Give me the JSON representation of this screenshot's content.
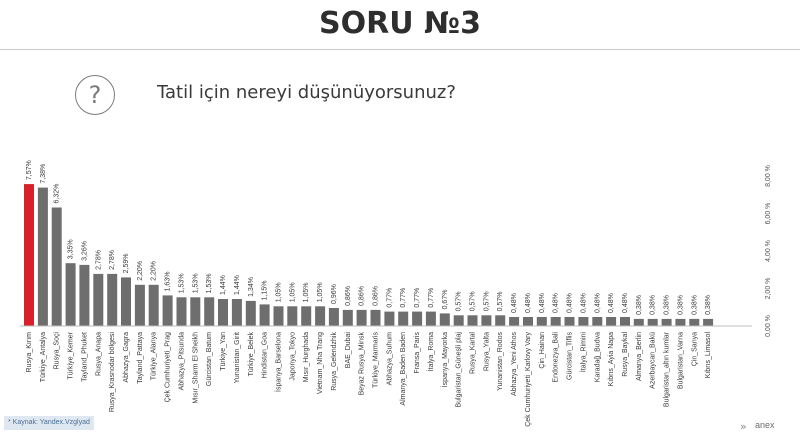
{
  "header": {
    "title": "SORU №3"
  },
  "question": {
    "icon": "question-circle-icon",
    "glyph": "?",
    "text": "Tatil için nereyi düşünüyorsunuz?"
  },
  "footer": {
    "source": "* Kaynak: Yandex.Vzglyad",
    "nav_glyph": "»",
    "brand": "anex"
  },
  "colors": {
    "highlight": "#d7202a",
    "bar": "#6e6e6e",
    "text": "#3a3a3a"
  },
  "chart_data": {
    "type": "bar",
    "categories": [
      "Rusya_Kırım",
      "Türkiye_Antalya",
      "Rusya_Soçi",
      "Türkiye_Kemer",
      "Tayland_Phuket",
      "Rusya_Anapa",
      "Rusya_Krasnodar bölgesi",
      "Abhazya_Gagra",
      "Tayland_Pattaya",
      "Türkiye_Alanya",
      "Çek Cumhuriyeti_Prag",
      "Abhazya_Pitsunda",
      "Mısır_Sharm El Sheikh",
      "Gürcistan_Batum",
      "Türkiye_Yan",
      "Yunanistan_Girit",
      "Türkiye_Belek",
      "Hindistan_Goa",
      "İspanya_Barselona",
      "Japonya_Tokyo",
      "Mısır_Hurghada",
      "Vietnam_Nha Trang",
      "Rusya_Gelendzhik",
      "BAE_Dubai",
      "Beyaz Rusya_Minsk",
      "Türkiye_Marmaris",
      "Abhazya_Suhum",
      "Almanya_Baden Baden",
      "Fransa_Paris",
      "İtalya_Roma",
      "İspanya_Mayorka",
      "Bulgaristan_Güneşli plaj",
      "Rusya_Kartal",
      "Rusya_Yalta",
      "Yunanistan_Rodos",
      "Abhazya_Yeni Athos",
      "Çek Cumhuriyeti_Karlovy Vary",
      "Çin_Hainan",
      "Endonezya_Bali",
      "Gürcistan_Tiflis",
      "İtalya_Rimini",
      "Karadağ_Budva",
      "Kıbrıs_Ayia Napa",
      "Rusya_Baykal",
      "Almanya_Berlin",
      "Azerbaycan_Bakü",
      "Bulgaristan_altın kumlar",
      "Bulgaristan_Varna",
      "Çin_Sanya",
      "Kıbrıs_Limasol"
    ],
    "values": [
      7.57,
      7.38,
      6.32,
      3.35,
      3.26,
      2.78,
      2.78,
      2.59,
      2.2,
      2.2,
      1.63,
      1.53,
      1.53,
      1.53,
      1.44,
      1.44,
      1.34,
      1.15,
      1.05,
      1.05,
      1.05,
      1.05,
      0.96,
      0.86,
      0.86,
      0.86,
      0.77,
      0.77,
      0.77,
      0.77,
      0.67,
      0.57,
      0.57,
      0.57,
      0.57,
      0.48,
      0.48,
      0.48,
      0.48,
      0.48,
      0.48,
      0.48,
      0.48,
      0.48,
      0.38,
      0.38,
      0.38,
      0.38,
      0.38,
      0.38
    ],
    "data_labels": [
      "7,57%",
      "7,38%",
      "6,32%",
      "3,35%",
      "3,26%",
      "2,78%",
      "2,78%",
      "2,59%",
      "2,20%",
      "2,20%",
      "1,63%",
      "1,53%",
      "1,53%",
      "1,53%",
      "1,44%",
      "1,44%",
      "1,34%",
      "1,15%",
      "1,05%",
      "1,05%",
      "1,05%",
      "1,05%",
      "0,96%",
      "0,86%",
      "0,86%",
      "0,86%",
      "0,77%",
      "0,77%",
      "0,77%",
      "0,77%",
      "0,67%",
      "0,57%",
      "0,57%",
      "0,57%",
      "0,57%",
      "0,48%",
      "0,48%",
      "0,48%",
      "0,48%",
      "0,48%",
      "0,48%",
      "0,48%",
      "0,48%",
      "0,48%",
      "0,38%",
      "0,38%",
      "0,38%",
      "0,38%",
      "0,38%",
      "0,38%"
    ],
    "highlight_index": 0,
    "ylim": [
      0,
      8
    ],
    "y_ticks": [
      0,
      2,
      4,
      6,
      8
    ],
    "y_tick_labels": [
      "0,00 %",
      "2,00 %",
      "4,00 %",
      "6,00 %",
      "8,00 %"
    ],
    "y_axis_side": "right",
    "grid": false,
    "legend": "none"
  }
}
